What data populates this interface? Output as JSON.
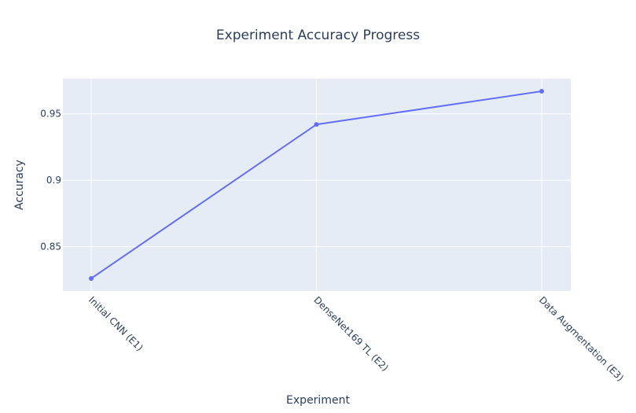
{
  "chart_data": {
    "type": "line",
    "title": "Experiment Accuracy Progress",
    "xlabel": "Experiment",
    "ylabel": "Accuracy",
    "categories": [
      "Initial CNN (E1)",
      "DenseNet169 TL (E2)",
      "Data Augmentation (E3)"
    ],
    "series": [
      {
        "values": [
          0.826,
          0.942,
          0.967
        ]
      }
    ],
    "yticks": [
      0.85,
      0.9,
      0.95
    ],
    "ytick_labels": [
      "0.85",
      "0.9",
      "0.95"
    ],
    "ylim": [
      0.8165,
      0.9765
    ],
    "grid": true,
    "line_color": "#636efa",
    "plot_bg": "#e5ecf6"
  }
}
